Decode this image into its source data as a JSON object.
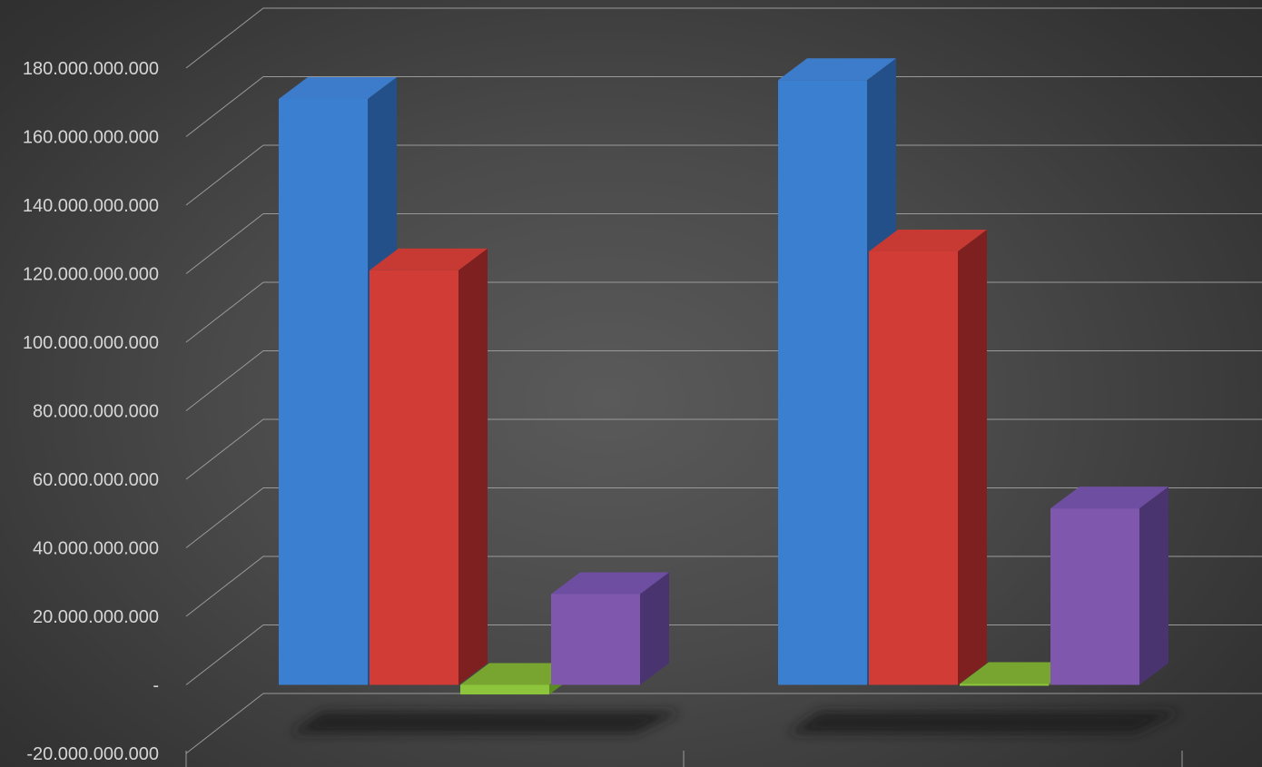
{
  "chart_data": {
    "type": "bar",
    "style": "3d-clustered-column",
    "title": "",
    "xlabel": "",
    "ylabel": "",
    "categories": [
      "",
      ""
    ],
    "series": [
      {
        "color": "#3a7fd0",
        "side": "#24508a",
        "top": "#3d7ccb",
        "values": [
          171000000000,
          176500000000
        ]
      },
      {
        "color": "#d23c36",
        "side": "#7f2020",
        "top": "#c63a33",
        "values": [
          121000000000,
          126500000000
        ]
      },
      {
        "color": "#8cc43c",
        "side": "#5c8a22",
        "top": "#77a52f",
        "values": [
          -2800000000,
          0
        ]
      },
      {
        "color": "#7f58ad",
        "side": "#4a3470",
        "top": "#6e4ea0",
        "values": [
          26500000000,
          51500000000
        ]
      }
    ],
    "ylim": [
      -20000000000,
      180000000000
    ],
    "yticks": [
      "-20.000.000.000",
      "-",
      "20.000.000.000",
      "40.000.000.000",
      "60.000.000.000",
      "80.000.000.000",
      "100.000.000.000",
      "120.000.000.000",
      "140.000.000.000",
      "160.000.000.000",
      "180.000.000.000"
    ],
    "grid": true,
    "legend": "none",
    "background": "#3a3a3a"
  }
}
